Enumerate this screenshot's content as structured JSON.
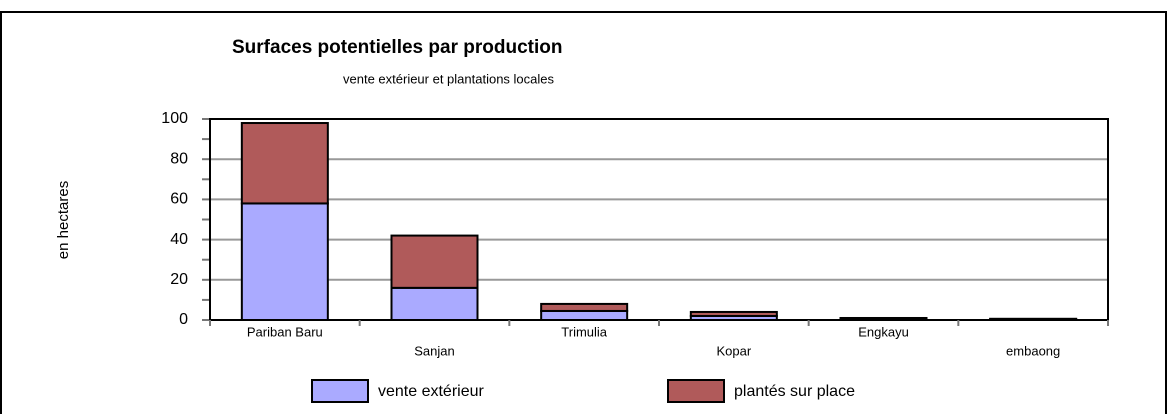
{
  "chart_data": {
    "type": "bar",
    "stacked": true,
    "title": "Surfaces potentielles par production",
    "subtitle": "vente extérieur et plantations locales",
    "y_label": "en hectares",
    "categories": [
      "Pariban Baru",
      "Sanjan",
      "Trimulia",
      "Kopar",
      "Engkayu",
      "embaong"
    ],
    "series": [
      {
        "name": "vente extérieur",
        "color": "#aaaaff",
        "values": [
          58,
          16,
          4.5,
          2,
          0.5,
          0.3
        ]
      },
      {
        "name": "plantés sur place",
        "color": "#b05a5a",
        "values": [
          40,
          26,
          3.5,
          2,
          0.5,
          0.3
        ]
      }
    ],
    "ylim": [
      0,
      100
    ],
    "yticks": [
      0,
      20,
      40,
      60,
      80,
      100
    ],
    "grid": true,
    "legend": "bottom"
  }
}
